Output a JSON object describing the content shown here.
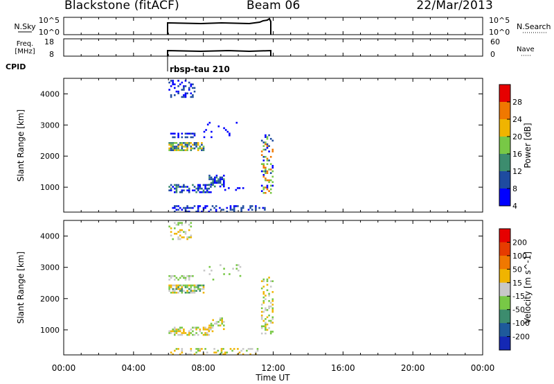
{
  "header": {
    "station": "Blackstone (fitACF)",
    "beam": "Beam 06",
    "date": "22/Mar/2013"
  },
  "top_panels": {
    "nsky_label": "N.Sky",
    "nsky_ticks": [
      "10^5",
      "10^0"
    ],
    "nsearch_label": "N.Search",
    "nsearch_ticks": [
      "10^5",
      "10^0"
    ],
    "freq_label": "Freq.",
    "freq_unit": "[MHz]",
    "freq_ticks": [
      "18",
      "8"
    ],
    "nave_label": "Nave",
    "nave_ticks": [
      "60",
      "0"
    ],
    "cpid_label": "CPID",
    "cpid_value": "rbsp-tau 210"
  },
  "chart_data": [
    {
      "type": "heatmap",
      "name": "power",
      "ylabel": "Slant Range [km]",
      "yticks": [
        1000,
        2000,
        3000,
        4000
      ],
      "ylim": [
        200,
        4500
      ],
      "colorbar_label": "Power [dB]",
      "colorbar_ticks": [
        4,
        8,
        12,
        16,
        20,
        24,
        28
      ],
      "colorbar_colors": [
        "#0000ff",
        "#1e4ba0",
        "#3c8c6e",
        "#78c846",
        "#f0b400",
        "#f07800",
        "#e60000"
      ],
      "regions": [
        {
          "t": [
            6.0,
            7.5
          ],
          "r": [
            3900,
            4450
          ],
          "density": 0.35,
          "levels": [
            0,
            1
          ]
        },
        {
          "t": [
            6.0,
            8.0
          ],
          "r": [
            2200,
            2450
          ],
          "density": 0.75,
          "levels": [
            1,
            2,
            3,
            4
          ]
        },
        {
          "t": [
            6.0,
            7.5
          ],
          "r": [
            2600,
            2750
          ],
          "density": 0.5,
          "levels": [
            0,
            1
          ]
        },
        {
          "t": [
            8.0,
            10.3
          ],
          "r": [
            2600,
            3100
          ],
          "density": 0.08,
          "levels": [
            0
          ]
        },
        {
          "t": [
            6.0,
            8.5
          ],
          "r": [
            850,
            1100
          ],
          "density": 0.55,
          "levels": [
            0,
            1,
            2
          ]
        },
        {
          "t": [
            8.3,
            9.2
          ],
          "r": [
            1000,
            1400
          ],
          "density": 0.5,
          "levels": [
            0,
            1,
            2
          ]
        },
        {
          "t": [
            9.2,
            10.8
          ],
          "r": [
            900,
            1000
          ],
          "density": 0.25,
          "levels": [
            0
          ]
        },
        {
          "t": [
            11.3,
            12.0
          ],
          "r": [
            800,
            2700
          ],
          "density": 0.35,
          "levels": [
            0,
            1,
            3,
            5
          ]
        },
        {
          "t": [
            6.0,
            11.5
          ],
          "r": [
            200,
            420
          ],
          "density": 0.28,
          "levels": [
            0,
            1
          ]
        }
      ]
    },
    {
      "type": "heatmap",
      "name": "velocity",
      "ylabel": "Slant Range [km]",
      "yticks": [
        1000,
        2000,
        3000,
        4000
      ],
      "ylim": [
        200,
        4500
      ],
      "xlabel": "Time UT",
      "x_ticks": [
        "00:00",
        "04:00",
        "08:00",
        "12:00",
        "16:00",
        "20:00",
        "00:00"
      ],
      "xlim_hours": [
        0,
        24
      ],
      "colorbar_label": "Velocity [m s^-1]",
      "colorbar_ticks": [
        200,
        100,
        50,
        15,
        -15,
        -50,
        -100,
        -200
      ],
      "colorbar_colors": [
        "#1428b4",
        "#1e5a9b",
        "#3c8c6e",
        "#78c846",
        "#c8c8c8",
        "#f0b400",
        "#f07800",
        "#e63c00",
        "#e60000"
      ],
      "regions": [
        {
          "t": [
            6.0,
            7.3
          ],
          "r": [
            3900,
            4450
          ],
          "density": 0.3,
          "levels": [
            3,
            4,
            5
          ]
        },
        {
          "t": [
            6.0,
            8.0
          ],
          "r": [
            2200,
            2450
          ],
          "density": 0.75,
          "levels": [
            3,
            4,
            5,
            2
          ]
        },
        {
          "t": [
            6.0,
            7.5
          ],
          "r": [
            2600,
            2750
          ],
          "density": 0.4,
          "levels": [
            3,
            4
          ]
        },
        {
          "t": [
            8.0,
            10.3
          ],
          "r": [
            2600,
            3100
          ],
          "density": 0.08,
          "levels": [
            4,
            3
          ]
        },
        {
          "t": [
            6.0,
            8.5
          ],
          "r": [
            850,
            1100
          ],
          "density": 0.5,
          "levels": [
            4,
            5,
            3
          ]
        },
        {
          "t": [
            8.3,
            9.2
          ],
          "r": [
            1000,
            1400
          ],
          "density": 0.5,
          "levels": [
            4,
            3,
            5
          ]
        },
        {
          "t": [
            11.3,
            12.0
          ],
          "r": [
            800,
            2700
          ],
          "density": 0.3,
          "levels": [
            3,
            4,
            5
          ]
        },
        {
          "t": [
            6.0,
            11.5
          ],
          "r": [
            200,
            420
          ],
          "density": 0.28,
          "levels": [
            3,
            4,
            5
          ]
        }
      ]
    }
  ],
  "colors": {
    "axis": "#000000",
    "background": "#ffffff"
  }
}
